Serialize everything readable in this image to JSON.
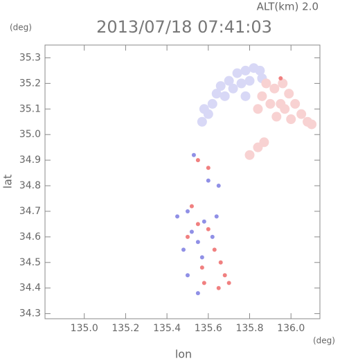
{
  "chart_data": {
    "type": "scatter",
    "title": "2013/07/18 07:41:03",
    "annotation": "ALT(km) 2.0",
    "x_unit": "(deg)",
    "y_unit": "(deg)",
    "xlabel": "lon",
    "ylabel": "lat",
    "xlim": [
      134.81,
      136.14
    ],
    "ylim": [
      34.28,
      35.35
    ],
    "xticks": [
      {
        "value": 135,
        "label": "135.0"
      },
      135.2,
      135.4,
      135.6,
      135.8,
      {
        "value": 136,
        "label": "136.0"
      }
    ],
    "yticks": [
      34.3,
      34.4,
      34.5,
      34.6,
      34.7,
      34.8,
      34.9,
      {
        "value": 35,
        "label": "35.0"
      },
      35.1,
      35.2,
      35.3
    ],
    "series": [
      {
        "color": "#d8d8f6",
        "x": [
          135.57,
          135.58,
          135.62,
          135.64,
          135.66,
          135.7,
          135.74,
          135.78,
          135.82,
          135.85,
          135.86,
          135.68,
          135.72,
          135.76,
          135.8,
          135.6,
          135.78
        ],
        "y": [
          35.05,
          35.1,
          35.12,
          35.16,
          35.19,
          35.21,
          35.24,
          35.25,
          35.26,
          35.25,
          35.22,
          35.15,
          35.18,
          35.2,
          35.21,
          35.08,
          35.15
        ]
      },
      {
        "color": "#f8d2d2",
        "x": [
          135.88,
          135.92,
          135.96,
          135.99,
          136.02,
          136.05,
          136.08,
          136.1,
          135.9,
          135.95,
          136.0,
          135.86,
          135.93,
          135.97,
          135.84,
          135.8,
          135.84,
          135.87
        ],
        "y": [
          35.2,
          35.18,
          35.2,
          35.16,
          35.12,
          35.08,
          35.05,
          35.04,
          35.12,
          35.12,
          35.06,
          35.15,
          35.07,
          35.1,
          35.1,
          34.92,
          34.95,
          34.97
        ]
      },
      {
        "color": "#9090e6",
        "x": [
          135.5,
          135.52,
          135.55,
          135.58,
          135.62,
          135.48,
          135.5,
          135.6,
          135.65,
          135.53,
          135.55,
          135.45,
          135.57,
          135.64
        ],
        "y": [
          34.7,
          34.62,
          34.58,
          34.66,
          34.6,
          34.55,
          34.45,
          34.82,
          34.8,
          34.92,
          34.38,
          34.68,
          34.52,
          34.68
        ]
      },
      {
        "color": "#f08080",
        "x": [
          135.52,
          135.55,
          135.6,
          135.63,
          135.57,
          135.68,
          135.7,
          135.65,
          135.5,
          135.58,
          135.55,
          135.6,
          135.95,
          135.66
        ],
        "y": [
          34.72,
          34.65,
          34.63,
          34.55,
          34.48,
          34.45,
          34.42,
          34.4,
          34.6,
          34.42,
          34.9,
          34.87,
          35.22,
          34.5
        ]
      }
    ]
  }
}
